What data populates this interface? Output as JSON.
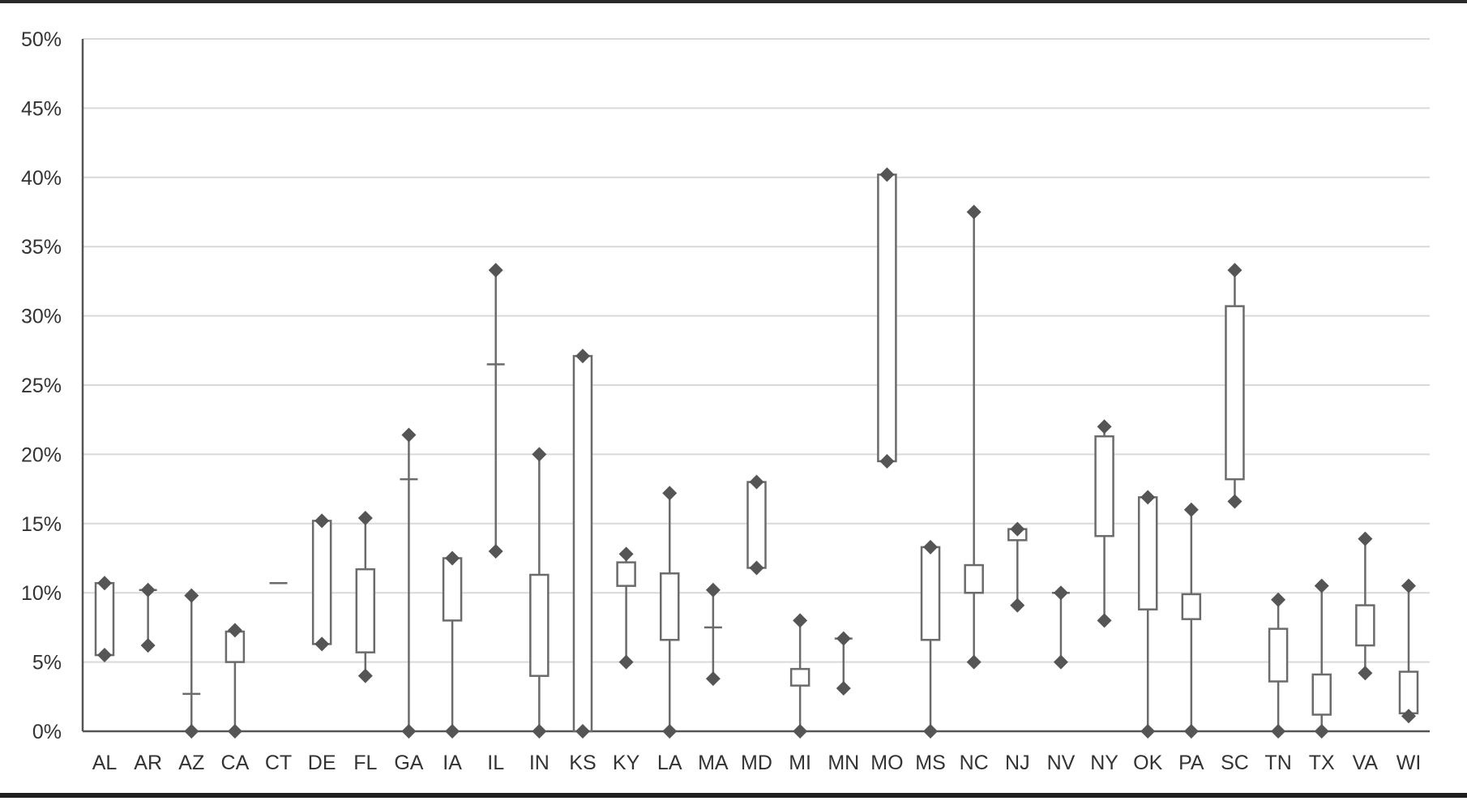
{
  "chart_data": {
    "type": "box",
    "title": "",
    "xlabel": "",
    "ylabel": "",
    "ylim": [
      0,
      50
    ],
    "y_ticks": [
      0,
      5,
      10,
      15,
      20,
      25,
      30,
      35,
      40,
      45,
      50
    ],
    "y_tick_labels": [
      "0%",
      "5%",
      "10%",
      "15%",
      "20%",
      "25%",
      "30%",
      "35%",
      "40%",
      "45%",
      "50%"
    ],
    "grid": true,
    "legend": "none",
    "colors": {
      "box_stroke": "#6b6b6b",
      "marker": "#555555",
      "grid": "#d9d9d9"
    },
    "categories": [
      "AL",
      "AR",
      "AZ",
      "CA",
      "CT",
      "DE",
      "FL",
      "GA",
      "IA",
      "IL",
      "IN",
      "KS",
      "KY",
      "LA",
      "MA",
      "MD",
      "MI",
      "MN",
      "MO",
      "MS",
      "NC",
      "NJ",
      "NV",
      "NY",
      "OK",
      "PA",
      "SC",
      "TN",
      "TX",
      "VA",
      "WI"
    ],
    "boxes": [
      {
        "state": "AL",
        "min": 5.5,
        "q1": 5.5,
        "q3": 10.7,
        "max": 10.7
      },
      {
        "state": "AR",
        "min": 6.2,
        "q1": 10.2,
        "q3": 10.2,
        "max": 10.2
      },
      {
        "state": "AZ",
        "min": 0.0,
        "q1": 2.7,
        "q3": 2.7,
        "max": 9.8
      },
      {
        "state": "CA",
        "min": 0.0,
        "q1": 5.0,
        "q3": 7.2,
        "max": 7.3
      },
      {
        "state": "CT",
        "min": 10.7,
        "q1": 10.7,
        "q3": 10.7,
        "max": 10.7
      },
      {
        "state": "DE",
        "min": 6.3,
        "q1": 6.3,
        "q3": 15.2,
        "max": 15.2
      },
      {
        "state": "FL",
        "min": 4.0,
        "q1": 5.7,
        "q3": 11.7,
        "max": 15.4
      },
      {
        "state": "GA",
        "min": 0.0,
        "q1": 18.2,
        "q3": 18.2,
        "max": 21.4
      },
      {
        "state": "IA",
        "min": 0.0,
        "q1": 8.0,
        "q3": 12.5,
        "max": 12.5
      },
      {
        "state": "IL",
        "min": 13.0,
        "q1": 26.5,
        "q3": 26.5,
        "max": 33.3
      },
      {
        "state": "IN",
        "min": 0.0,
        "q1": 4.0,
        "q3": 11.3,
        "max": 20.0
      },
      {
        "state": "KS",
        "min": 0.0,
        "q1": 0.0,
        "q3": 27.1,
        "max": 27.1
      },
      {
        "state": "KY",
        "min": 5.0,
        "q1": 10.5,
        "q3": 12.2,
        "max": 12.8
      },
      {
        "state": "LA",
        "min": 0.0,
        "q1": 6.6,
        "q3": 11.4,
        "max": 17.2
      },
      {
        "state": "MA",
        "min": 3.8,
        "q1": 7.5,
        "q3": 7.5,
        "max": 10.2
      },
      {
        "state": "MD",
        "min": 11.8,
        "q1": 11.8,
        "q3": 18.0,
        "max": 18.0
      },
      {
        "state": "MI",
        "min": 0.0,
        "q1": 3.3,
        "q3": 4.5,
        "max": 8.0
      },
      {
        "state": "MN",
        "min": 3.1,
        "q1": 6.7,
        "q3": 6.7,
        "max": 6.7
      },
      {
        "state": "MO",
        "min": 19.5,
        "q1": 19.5,
        "q3": 40.2,
        "max": 40.2
      },
      {
        "state": "MS",
        "min": 0.0,
        "q1": 6.6,
        "q3": 13.3,
        "max": 13.3
      },
      {
        "state": "NC",
        "min": 5.0,
        "q1": 10.0,
        "q3": 12.0,
        "max": 37.5
      },
      {
        "state": "NJ",
        "min": 9.1,
        "q1": 13.8,
        "q3": 14.6,
        "max": 14.6
      },
      {
        "state": "NV",
        "min": 5.0,
        "q1": 10.0,
        "q3": 10.0,
        "max": 10.0
      },
      {
        "state": "NY",
        "min": 8.0,
        "q1": 14.1,
        "q3": 21.3,
        "max": 22.0
      },
      {
        "state": "OK",
        "min": 0.0,
        "q1": 8.8,
        "q3": 16.9,
        "max": 16.9
      },
      {
        "state": "PA",
        "min": 0.0,
        "q1": 8.1,
        "q3": 9.9,
        "max": 16.0
      },
      {
        "state": "SC",
        "min": 16.6,
        "q1": 18.2,
        "q3": 30.7,
        "max": 33.3
      },
      {
        "state": "TN",
        "min": 0.0,
        "q1": 3.6,
        "q3": 7.4,
        "max": 9.5
      },
      {
        "state": "TX",
        "min": 0.0,
        "q1": 1.2,
        "q3": 4.1,
        "max": 10.5
      },
      {
        "state": "VA",
        "min": 4.2,
        "q1": 6.2,
        "q3": 9.1,
        "max": 13.9
      },
      {
        "state": "WI",
        "min": 1.1,
        "q1": 1.3,
        "q3": 4.3,
        "max": 10.5
      }
    ]
  }
}
